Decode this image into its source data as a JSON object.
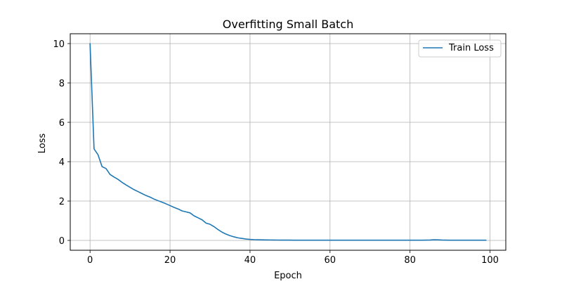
{
  "chart_data": {
    "type": "line",
    "title": "Overfitting Small Batch",
    "xlabel": "Epoch",
    "ylabel": "Loss",
    "xlim": [
      -4.95,
      103.95
    ],
    "ylim": [
      -0.5,
      10.5
    ],
    "xticks": [
      0,
      20,
      40,
      60,
      80,
      100
    ],
    "yticks": [
      0,
      2,
      4,
      6,
      8,
      10
    ],
    "grid": true,
    "legend": {
      "placement": "top-right"
    },
    "series": [
      {
        "name": "Train Loss",
        "color": "#1f77b4",
        "x": [
          0,
          1,
          2,
          3,
          4,
          5,
          6,
          7,
          8,
          9,
          10,
          11,
          12,
          13,
          14,
          15,
          16,
          17,
          18,
          19,
          20,
          21,
          22,
          23,
          24,
          25,
          26,
          27,
          28,
          29,
          30,
          31,
          32,
          33,
          34,
          35,
          36,
          37,
          38,
          39,
          40,
          41,
          42,
          43,
          44,
          45,
          46,
          47,
          48,
          49,
          50,
          51,
          52,
          53,
          54,
          55,
          56,
          57,
          58,
          59,
          60,
          61,
          62,
          63,
          64,
          65,
          66,
          67,
          68,
          69,
          70,
          71,
          72,
          73,
          74,
          75,
          76,
          77,
          78,
          79,
          80,
          81,
          82,
          83,
          84,
          85,
          86,
          87,
          88,
          89,
          90,
          91,
          92,
          93,
          94,
          95,
          96,
          97,
          98,
          99
        ],
        "y": [
          10.0,
          4.65,
          4.35,
          3.75,
          3.65,
          3.35,
          3.22,
          3.1,
          2.95,
          2.82,
          2.7,
          2.58,
          2.48,
          2.38,
          2.28,
          2.2,
          2.1,
          2.02,
          1.94,
          1.86,
          1.77,
          1.68,
          1.6,
          1.5,
          1.45,
          1.4,
          1.25,
          1.15,
          1.05,
          0.88,
          0.82,
          0.7,
          0.55,
          0.42,
          0.32,
          0.24,
          0.18,
          0.13,
          0.1,
          0.07,
          0.05,
          0.04,
          0.035,
          0.03,
          0.025,
          0.022,
          0.02,
          0.018,
          0.016,
          0.015,
          0.014,
          0.013,
          0.012,
          0.012,
          0.011,
          0.011,
          0.01,
          0.01,
          0.01,
          0.01,
          0.01,
          0.01,
          0.01,
          0.01,
          0.01,
          0.01,
          0.01,
          0.01,
          0.01,
          0.01,
          0.01,
          0.01,
          0.01,
          0.01,
          0.01,
          0.01,
          0.01,
          0.01,
          0.01,
          0.01,
          0.01,
          0.01,
          0.01,
          0.01,
          0.015,
          0.02,
          0.035,
          0.03,
          0.02,
          0.015,
          0.01,
          0.01,
          0.01,
          0.01,
          0.01,
          0.01,
          0.01,
          0.01,
          0.01,
          0.01
        ]
      }
    ]
  }
}
